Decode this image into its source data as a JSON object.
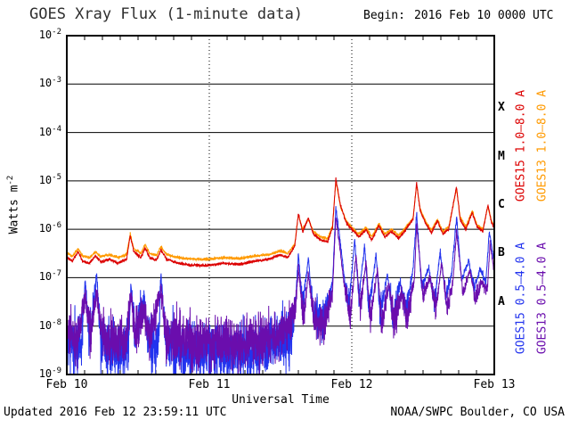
{
  "title": "GOES Xray Flux (1-minute data)",
  "begin": {
    "label": "Begin:",
    "value": "2016 Feb 10 0000 UTC"
  },
  "axes": {
    "xlabel": "Universal Time",
    "ylabel_base": "Watts m",
    "ylabel_exp": "-2",
    "y_ticks": [
      {
        "label_base": "10",
        "label_exp": "-2",
        "value_exp": -2
      },
      {
        "label_base": "10",
        "label_exp": "-3",
        "value_exp": -3
      },
      {
        "label_base": "10",
        "label_exp": "-4",
        "value_exp": -4
      },
      {
        "label_base": "10",
        "label_exp": "-5",
        "value_exp": -5
      },
      {
        "label_base": "10",
        "label_exp": "-6",
        "value_exp": -6
      },
      {
        "label_base": "10",
        "label_exp": "-7",
        "value_exp": -7
      },
      {
        "label_base": "10",
        "label_exp": "-8",
        "value_exp": -8
      },
      {
        "label_base": "10",
        "label_exp": "-9",
        "value_exp": -9
      }
    ],
    "x_ticks": [
      {
        "day": 0,
        "label": "Feb 10"
      },
      {
        "day": 1,
        "label": "Feb 11"
      },
      {
        "day": 2,
        "label": "Feb 12"
      },
      {
        "day": 3,
        "label": "Feb 13"
      }
    ],
    "flare_classes": [
      {
        "letter": "X",
        "log10_center": -3.5
      },
      {
        "letter": "M",
        "log10_center": -4.5
      },
      {
        "letter": "C",
        "log10_center": -5.5
      },
      {
        "letter": "B",
        "log10_center": -6.5
      },
      {
        "letter": "A",
        "log10_center": -7.5
      }
    ]
  },
  "legend": {
    "items": [
      {
        "label": "GOES15 1.0–8.0 A",
        "series": "goes15-long",
        "column": 0,
        "half": "top"
      },
      {
        "label": "GOES13 1.0–8.0 A",
        "series": "goes13-long",
        "column": 1,
        "half": "top"
      },
      {
        "label": "GOES15 0.5–4.0 A",
        "series": "goes15-short",
        "column": 0,
        "half": "bottom"
      },
      {
        "label": "GOES13 0.5–4.0 A",
        "series": "goes13-short",
        "column": 1,
        "half": "bottom"
      }
    ]
  },
  "footer": {
    "updated": "Updated 2016 Feb 12 23:59:11 UTC",
    "credit": "NOAA/SWPC Boulder, CO USA"
  },
  "chart_data": {
    "type": "line",
    "title": "GOES Xray Flux (1-minute data)",
    "x_axis": {
      "label": "Universal Time",
      "unit": "days since 2016 Feb 10 0000 UTC",
      "range": [
        0,
        3
      ],
      "tick_labels": [
        "Feb 10",
        "Feb 11",
        "Feb 12",
        "Feb 13"
      ],
      "day_gridlines": [
        1,
        2
      ]
    },
    "y_axis": {
      "label": "Watts m^-2",
      "scale": "log10",
      "range": [
        1e-09,
        0.01
      ],
      "flare_class_bands": {
        "A": [
          1e-08,
          1e-07
        ],
        "B": [
          1e-07,
          1e-06
        ],
        "C": [
          1e-06,
          1e-05
        ],
        "M": [
          1e-05,
          0.0001
        ],
        "X": [
          0.0001,
          0.001
        ]
      }
    },
    "series": [
      {
        "id": "goes15-long",
        "name": "GOES15 1.0–8.0 A",
        "color": "#dc0000",
        "noise_decades": 0.015,
        "noise_model": "uniform",
        "points_day_wm2": [
          [
            0.0,
            2.6e-07
          ],
          [
            0.04,
            2.2e-07
          ],
          [
            0.08,
            3.5e-07
          ],
          [
            0.11,
            2.2e-07
          ],
          [
            0.16,
            2e-07
          ],
          [
            0.2,
            2.8e-07
          ],
          [
            0.24,
            2.1e-07
          ],
          [
            0.3,
            2.4e-07
          ],
          [
            0.36,
            2e-07
          ],
          [
            0.42,
            2.4e-07
          ],
          [
            0.445,
            7.5e-07
          ],
          [
            0.47,
            3.5e-07
          ],
          [
            0.52,
            2.6e-07
          ],
          [
            0.55,
            4.2e-07
          ],
          [
            0.58,
            2.6e-07
          ],
          [
            0.63,
            2.3e-07
          ],
          [
            0.66,
            3.8e-07
          ],
          [
            0.7,
            2.4e-07
          ],
          [
            0.78,
            2e-07
          ],
          [
            0.88,
            1.8e-07
          ],
          [
            1.0,
            1.8e-07
          ],
          [
            1.1,
            2e-07
          ],
          [
            1.22,
            1.9e-07
          ],
          [
            1.32,
            2.2e-07
          ],
          [
            1.42,
            2.4e-07
          ],
          [
            1.5,
            3e-07
          ],
          [
            1.55,
            2.6e-07
          ],
          [
            1.6,
            4.5e-07
          ],
          [
            1.625,
            2.1e-06
          ],
          [
            1.655,
            9e-07
          ],
          [
            1.695,
            1.7e-06
          ],
          [
            1.73,
            8e-07
          ],
          [
            1.78,
            6e-07
          ],
          [
            1.83,
            5.5e-07
          ],
          [
            1.865,
            1.1e-06
          ],
          [
            1.888,
            1.1e-05
          ],
          [
            1.92,
            3.2e-06
          ],
          [
            1.96,
            1.4e-06
          ],
          [
            2.0,
            1e-06
          ],
          [
            2.05,
            7e-07
          ],
          [
            2.1,
            1e-06
          ],
          [
            2.14,
            6e-07
          ],
          [
            2.19,
            1.2e-06
          ],
          [
            2.23,
            7e-07
          ],
          [
            2.28,
            9e-07
          ],
          [
            2.33,
            6.5e-07
          ],
          [
            2.38,
            1e-06
          ],
          [
            2.43,
            1.6e-06
          ],
          [
            2.455,
            9e-06
          ],
          [
            2.48,
            2.4e-06
          ],
          [
            2.52,
            1.3e-06
          ],
          [
            2.56,
            8.5e-07
          ],
          [
            2.6,
            1.5e-06
          ],
          [
            2.64,
            8e-07
          ],
          [
            2.68,
            1e-06
          ],
          [
            2.735,
            7.5e-06
          ],
          [
            2.76,
            1.6e-06
          ],
          [
            2.8,
            1e-06
          ],
          [
            2.845,
            2.2e-06
          ],
          [
            2.88,
            1.1e-06
          ],
          [
            2.92,
            9e-07
          ],
          [
            2.955,
            3.2e-06
          ],
          [
            2.98,
            1.4e-06
          ],
          [
            3.0,
            1.1e-06
          ]
        ]
      },
      {
        "id": "goes13-long",
        "name": "GOES13 1.0–8.0 A",
        "color": "#ff9a00",
        "noise_decades": 0.015,
        "noise_model": "uniform",
        "points_day_wm2": [
          [
            0.0,
            3.2e-07
          ],
          [
            0.04,
            2.8e-07
          ],
          [
            0.08,
            4e-07
          ],
          [
            0.11,
            2.8e-07
          ],
          [
            0.16,
            2.6e-07
          ],
          [
            0.2,
            3.4e-07
          ],
          [
            0.24,
            2.7e-07
          ],
          [
            0.3,
            3e-07
          ],
          [
            0.36,
            2.6e-07
          ],
          [
            0.42,
            3e-07
          ],
          [
            0.445,
            8e-07
          ],
          [
            0.47,
            4e-07
          ],
          [
            0.52,
            3.2e-07
          ],
          [
            0.55,
            4.8e-07
          ],
          [
            0.58,
            3.2e-07
          ],
          [
            0.63,
            2.9e-07
          ],
          [
            0.66,
            4.4e-07
          ],
          [
            0.7,
            3e-07
          ],
          [
            0.78,
            2.6e-07
          ],
          [
            0.88,
            2.4e-07
          ],
          [
            1.0,
            2.4e-07
          ],
          [
            1.1,
            2.6e-07
          ],
          [
            1.22,
            2.5e-07
          ],
          [
            1.32,
            2.8e-07
          ],
          [
            1.42,
            3e-07
          ],
          [
            1.5,
            3.6e-07
          ],
          [
            1.55,
            3.2e-07
          ],
          [
            1.6,
            5e-07
          ],
          [
            1.625,
            2e-06
          ],
          [
            1.655,
            1e-06
          ],
          [
            1.695,
            1.6e-06
          ],
          [
            1.73,
            9e-07
          ],
          [
            1.78,
            7e-07
          ],
          [
            1.83,
            6.5e-07
          ],
          [
            1.865,
            1.2e-06
          ],
          [
            1.888,
            1e-05
          ],
          [
            1.92,
            3e-06
          ],
          [
            1.96,
            1.5e-06
          ],
          [
            2.0,
            1.1e-06
          ],
          [
            2.05,
            8e-07
          ],
          [
            2.1,
            1.1e-06
          ],
          [
            2.14,
            7e-07
          ],
          [
            2.19,
            1.3e-06
          ],
          [
            2.23,
            8e-07
          ],
          [
            2.28,
            1e-06
          ],
          [
            2.33,
            7.5e-07
          ],
          [
            2.38,
            1.1e-06
          ],
          [
            2.43,
            1.7e-06
          ],
          [
            2.455,
            8.5e-06
          ],
          [
            2.48,
            2.6e-06
          ],
          [
            2.52,
            1.4e-06
          ],
          [
            2.56,
            9.5e-07
          ],
          [
            2.6,
            1.6e-06
          ],
          [
            2.64,
            9e-07
          ],
          [
            2.68,
            1.1e-06
          ],
          [
            2.735,
            7e-06
          ],
          [
            2.76,
            1.8e-06
          ],
          [
            2.8,
            1.1e-06
          ],
          [
            2.845,
            2.4e-06
          ],
          [
            2.88,
            1.2e-06
          ],
          [
            2.92,
            1e-06
          ],
          [
            2.955,
            3e-06
          ],
          [
            2.98,
            1.5e-06
          ],
          [
            3.0,
            1.2e-06
          ]
        ]
      },
      {
        "id": "goes15-short",
        "name": "GOES15 0.5–4.0 A",
        "color": "#2233ee",
        "noise_decades": 0.3,
        "noise_model": "floor-fade",
        "points_day_wm2": [
          [
            0.0,
            5e-09
          ],
          [
            0.06,
            3.5e-09
          ],
          [
            0.1,
            4e-09
          ],
          [
            0.13,
            9e-08
          ],
          [
            0.16,
            5e-09
          ],
          [
            0.21,
            1.1e-07
          ],
          [
            0.24,
            5e-09
          ],
          [
            0.3,
            3.5e-09
          ],
          [
            0.38,
            3e-09
          ],
          [
            0.435,
            4e-09
          ],
          [
            0.45,
            8e-08
          ],
          [
            0.475,
            7e-09
          ],
          [
            0.54,
            3.2e-08
          ],
          [
            0.57,
            5e-09
          ],
          [
            0.645,
            4e-09
          ],
          [
            0.66,
            1.2e-07
          ],
          [
            0.69,
            6e-09
          ],
          [
            0.76,
            3e-09
          ],
          [
            0.9,
            2.8e-09
          ],
          [
            1.05,
            3e-09
          ],
          [
            1.2,
            2.8e-09
          ],
          [
            1.35,
            3.2e-09
          ],
          [
            1.5,
            6e-09
          ],
          [
            1.57,
            5e-09
          ],
          [
            1.605,
            3e-08
          ],
          [
            1.625,
            3.2e-07
          ],
          [
            1.655,
            2.5e-08
          ],
          [
            1.695,
            2.4e-07
          ],
          [
            1.73,
            2e-08
          ],
          [
            1.8,
            1.2e-08
          ],
          [
            1.865,
            8e-08
          ],
          [
            1.888,
            2.8e-06
          ],
          [
            1.915,
            7e-07
          ],
          [
            1.945,
            1.1e-07
          ],
          [
            1.98,
            2.5e-08
          ],
          [
            2.02,
            6e-07
          ],
          [
            2.05,
            4e-08
          ],
          [
            2.09,
            4.5e-07
          ],
          [
            2.12,
            2e-08
          ],
          [
            2.17,
            3e-07
          ],
          [
            2.2,
            1.8e-08
          ],
          [
            2.25,
            1.2e-07
          ],
          [
            2.29,
            1.5e-08
          ],
          [
            2.34,
            8e-08
          ],
          [
            2.38,
            2e-08
          ],
          [
            2.43,
            1.5e-07
          ],
          [
            2.455,
            2.2e-06
          ],
          [
            2.49,
            6e-08
          ],
          [
            2.54,
            1.6e-07
          ],
          [
            2.58,
            3e-08
          ],
          [
            2.62,
            3.5e-07
          ],
          [
            2.66,
            4e-08
          ],
          [
            2.7,
            1.2e-07
          ],
          [
            2.735,
            1.8e-06
          ],
          [
            2.77,
            9e-08
          ],
          [
            2.82,
            2.2e-07
          ],
          [
            2.86,
            6e-08
          ],
          [
            2.9,
            1.5e-07
          ],
          [
            2.94,
            8e-08
          ],
          [
            2.965,
            9e-07
          ],
          [
            3.0,
            2e-07
          ]
        ]
      },
      {
        "id": "goes13-short",
        "name": "GOES13 0.5–4.0 A",
        "color": "#6a0dad",
        "noise_decades": 0.28,
        "noise_model": "floor-fade",
        "points_day_wm2": [
          [
            0.0,
            7e-09
          ],
          [
            0.07,
            5.5e-09
          ],
          [
            0.13,
            4e-08
          ],
          [
            0.17,
            6e-09
          ],
          [
            0.21,
            5e-08
          ],
          [
            0.25,
            6e-09
          ],
          [
            0.33,
            5e-09
          ],
          [
            0.42,
            5.5e-09
          ],
          [
            0.45,
            4.5e-08
          ],
          [
            0.48,
            7e-09
          ],
          [
            0.54,
            2e-08
          ],
          [
            0.58,
            6e-09
          ],
          [
            0.66,
            5e-08
          ],
          [
            0.7,
            6e-09
          ],
          [
            0.8,
            5e-09
          ],
          [
            0.95,
            4.5e-09
          ],
          [
            1.1,
            5e-09
          ],
          [
            1.25,
            4.5e-09
          ],
          [
            1.4,
            5.5e-09
          ],
          [
            1.52,
            7e-09
          ],
          [
            1.605,
            2.2e-08
          ],
          [
            1.625,
            1.6e-07
          ],
          [
            1.66,
            1.4e-08
          ],
          [
            1.695,
            1.2e-07
          ],
          [
            1.735,
            1.3e-08
          ],
          [
            1.8,
            1e-08
          ],
          [
            1.865,
            5e-08
          ],
          [
            1.888,
            1.9e-06
          ],
          [
            1.915,
            4.5e-07
          ],
          [
            1.95,
            6e-08
          ],
          [
            1.99,
            1.6e-08
          ],
          [
            2.03,
            3e-07
          ],
          [
            2.06,
            2.2e-08
          ],
          [
            2.1,
            2.2e-07
          ],
          [
            2.13,
            1.4e-08
          ],
          [
            2.18,
            1.5e-07
          ],
          [
            2.21,
            1.2e-08
          ],
          [
            2.26,
            7e-08
          ],
          [
            2.3,
            1.1e-08
          ],
          [
            2.35,
            5e-08
          ],
          [
            2.39,
            1.4e-08
          ],
          [
            2.44,
            1e-07
          ],
          [
            2.455,
            1.3e-06
          ],
          [
            2.5,
            4e-08
          ],
          [
            2.55,
            1e-07
          ],
          [
            2.59,
            2e-08
          ],
          [
            2.63,
            2e-07
          ],
          [
            2.67,
            2.5e-08
          ],
          [
            2.71,
            8e-08
          ],
          [
            2.735,
            9e-07
          ],
          [
            2.78,
            5e-08
          ],
          [
            2.83,
            1.4e-07
          ],
          [
            2.87,
            3.5e-08
          ],
          [
            2.91,
            9e-08
          ],
          [
            2.95,
            5e-08
          ],
          [
            2.97,
            5e-07
          ],
          [
            3.0,
            1.2e-07
          ]
        ]
      }
    ]
  }
}
